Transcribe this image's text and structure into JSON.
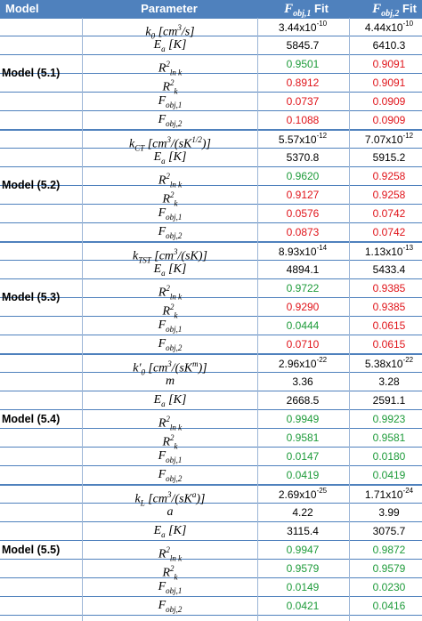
{
  "header": {
    "model": "Model",
    "parameter": "Parameter",
    "fit1_sym": "F",
    "fit1_sub": "obj,1",
    "fit2_sym": "F",
    "fit2_sub": "obj,2",
    "fit_word": "Fit"
  },
  "colors": {
    "header_bg": "#4f81bd",
    "green": "#1e9b3a",
    "red": "#e0141a",
    "black": "#000000"
  },
  "groups": [
    {
      "label": "Model (5.1)",
      "rows": [
        {
          "param": "k<sub>0</sub> [cm<sup>3</sup>/s]",
          "v1": "3.44x10",
          "v1e": "-10",
          "v1c": "black",
          "v2": "4.44x10",
          "v2e": "-10",
          "v2c": "black"
        },
        {
          "param": "E<sub>a</sub> [K]",
          "v1": "5845.7",
          "v1c": "black",
          "v2": "6410.3",
          "v2c": "black"
        },
        {
          "param": "R<sup>2</sup><sub>ln k</sub>",
          "v1": "0.9501",
          "v1c": "green",
          "v2": "0.9091",
          "v2c": "red"
        },
        {
          "param": "R<sup>2</sup><sub>k</sub>",
          "v1": "0.8912",
          "v1c": "red",
          "v2": "0.9091",
          "v2c": "red"
        },
        {
          "param": "F<sub>obj,1</sub>",
          "v1": "0.0737",
          "v1c": "red",
          "v2": "0.0909",
          "v2c": "red"
        },
        {
          "param": "F<sub>obj,2</sub>",
          "v1": "0.1088",
          "v1c": "red",
          "v2": "0.0909",
          "v2c": "red"
        }
      ]
    },
    {
      "label": "Model (5.2)",
      "rows": [
        {
          "param": "k<sub>CT</sub> [cm<sup>3</sup>/(sK<sup>1/2</sup>)]",
          "v1": "5.57x10",
          "v1e": "-12",
          "v1c": "black",
          "v2": "7.07x10",
          "v2e": "-12",
          "v2c": "black"
        },
        {
          "param": "E<sub>a</sub> [K]",
          "v1": "5370.8",
          "v1c": "black",
          "v2": "5915.2",
          "v2c": "black"
        },
        {
          "param": "R<sup>2</sup><sub>ln k</sub>",
          "v1": "0.9620",
          "v1c": "green",
          "v2": "0.9258",
          "v2c": "red"
        },
        {
          "param": "R<sup>2</sup><sub>k</sub>",
          "v1": "0.9127",
          "v1c": "red",
          "v2": "0.9258",
          "v2c": "red"
        },
        {
          "param": "F<sub>obj,1</sub>",
          "v1": "0.0576",
          "v1c": "red",
          "v2": "0.0742",
          "v2c": "red"
        },
        {
          "param": "F<sub>obj,2</sub>",
          "v1": "0.0873",
          "v1c": "red",
          "v2": "0.0742",
          "v2c": "red"
        }
      ]
    },
    {
      "label": "Model (5.3)",
      "rows": [
        {
          "param": "k<sub>TST</sub> [cm<sup>3</sup>/(sK)]",
          "v1": "8.93x10",
          "v1e": "-14",
          "v1c": "black",
          "v2": "1.13x10",
          "v2e": "-13",
          "v2c": "black"
        },
        {
          "param": "E<sub>a</sub> [K]",
          "v1": "4894.1",
          "v1c": "black",
          "v2": "5433.4",
          "v2c": "black"
        },
        {
          "param": "R<sup>2</sup><sub>ln k</sub>",
          "v1": "0.9722",
          "v1c": "green",
          "v2": "0.9385",
          "v2c": "red"
        },
        {
          "param": "R<sup>2</sup><sub>k</sub>",
          "v1": "0.9290",
          "v1c": "red",
          "v2": "0.9385",
          "v2c": "red"
        },
        {
          "param": "F<sub>obj,1</sub>",
          "v1": "0.0444",
          "v1c": "green",
          "v2": "0.0615",
          "v2c": "red"
        },
        {
          "param": "F<sub>obj,2</sub>",
          "v1": "0.0710",
          "v1c": "red",
          "v2": "0.0615",
          "v2c": "red"
        }
      ]
    },
    {
      "label": "Model (5.4)",
      "rows": [
        {
          "param": "k′<sub>0</sub> [cm<sup>3</sup>/(sK<sup>m</sup>)]",
          "v1": "2.96x10",
          "v1e": "-22",
          "v1c": "black",
          "v2": "5.38x10",
          "v2e": "-22",
          "v2c": "black"
        },
        {
          "param": "m",
          "v1": "3.36",
          "v1c": "black",
          "v2": "3.28",
          "v2c": "black"
        },
        {
          "param": "E<sub>a</sub> [K]",
          "v1": "2668.5",
          "v1c": "black",
          "v2": "2591.1",
          "v2c": "black"
        },
        {
          "param": "R<sup>2</sup><sub>ln k</sub>",
          "v1": "0.9949",
          "v1c": "green",
          "v2": "0.9923",
          "v2c": "green"
        },
        {
          "param": "R<sup>2</sup><sub>k</sub>",
          "v1": "0.9581",
          "v1c": "green",
          "v2": "0.9581",
          "v2c": "green"
        },
        {
          "param": "F<sub>obj,1</sub>",
          "v1": "0.0147",
          "v1c": "green",
          "v2": "0.0180",
          "v2c": "green"
        },
        {
          "param": "F<sub>obj,2</sub>",
          "v1": "0.0419",
          "v1c": "green",
          "v2": "0.0419",
          "v2c": "green"
        }
      ]
    },
    {
      "label": "Model (5.5)",
      "rows": [
        {
          "param": "k<sub>L</sub> [cm<sup>3</sup>/(sK<sup>a</sup>)]",
          "v1": "2.69x10",
          "v1e": "-25",
          "v1c": "black",
          "v2": "1.71x10",
          "v2e": "-24",
          "v2c": "black"
        },
        {
          "param": "a",
          "v1": "4.22",
          "v1c": "black",
          "v2": "3.99",
          "v2c": "black"
        },
        {
          "param": "E<sub>a</sub> [K]",
          "v1": "3115.4",
          "v1c": "black",
          "v2": "3075.7",
          "v2c": "black"
        },
        {
          "param": "R<sup>2</sup><sub>ln k</sub>",
          "v1": "0.9947",
          "v1c": "green",
          "v2": "0.9872",
          "v2c": "green"
        },
        {
          "param": "R<sup>2</sup><sub>k</sub>",
          "v1": "0.9579",
          "v1c": "green",
          "v2": "0.9579",
          "v2c": "green"
        },
        {
          "param": "F<sub>obj,1</sub>",
          "v1": "0.0149",
          "v1c": "green",
          "v2": "0.0230",
          "v2c": "green"
        },
        {
          "param": "F<sub>obj,2</sub>",
          "v1": "0.0421",
          "v1c": "green",
          "v2": "0.0416",
          "v2c": "green"
        }
      ]
    }
  ]
}
